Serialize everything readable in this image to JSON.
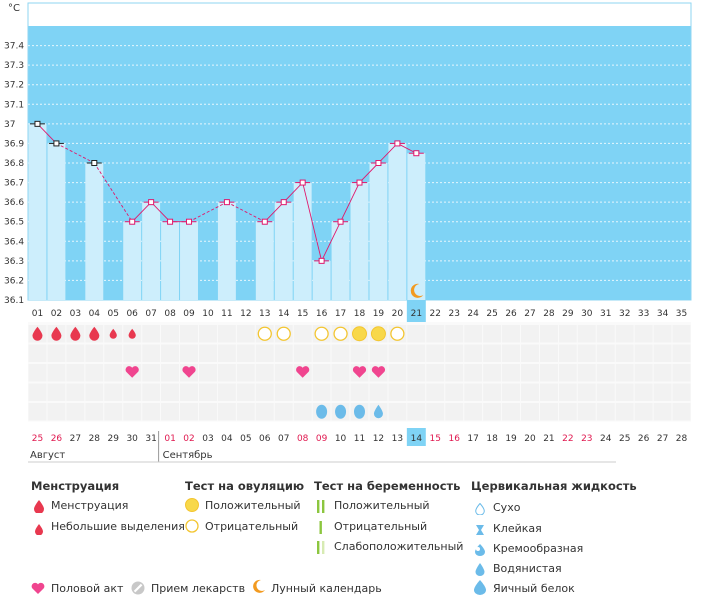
{
  "chart_data": {
    "type": "bar",
    "title": "",
    "unit": "°C",
    "ylim": [
      36.1,
      37.5
    ],
    "yticks": [
      "36.1",
      "36.2",
      "36.3",
      "36.4",
      "36.5",
      "36.6",
      "36.7",
      "36.8",
      "36.9",
      "37",
      "37.1",
      "37.2",
      "37.3",
      "37.4"
    ],
    "cycle_days": [
      "01",
      "02",
      "03",
      "04",
      "05",
      "06",
      "07",
      "08",
      "09",
      "10",
      "11",
      "12",
      "13",
      "14",
      "15",
      "16",
      "17",
      "18",
      "19",
      "20",
      "21",
      "22",
      "23",
      "24",
      "25",
      "26",
      "27",
      "28",
      "29",
      "30",
      "31",
      "32",
      "33",
      "34",
      "35"
    ],
    "temperatures": [
      37.0,
      36.9,
      null,
      36.8,
      null,
      36.5,
      36.6,
      36.5,
      36.5,
      null,
      36.6,
      null,
      36.5,
      36.6,
      36.7,
      36.3,
      36.5,
      36.7,
      36.8,
      36.9,
      36.85,
      null,
      null,
      null,
      null,
      null,
      null,
      null,
      null,
      null,
      null,
      null,
      null,
      null,
      null
    ],
    "current_cycle_day": "21",
    "moon_day": "21",
    "calendar_dates": [
      "25",
      "26",
      "27",
      "28",
      "29",
      "30",
      "31",
      "01",
      "02",
      "03",
      "04",
      "05",
      "06",
      "07",
      "08",
      "09",
      "10",
      "11",
      "12",
      "13",
      "14",
      "15",
      "16",
      "17",
      "18",
      "19",
      "20",
      "21",
      "22",
      "23",
      "24",
      "25",
      "26",
      "27",
      "28"
    ],
    "calendar_red": [
      true,
      true,
      false,
      false,
      false,
      false,
      false,
      true,
      true,
      false,
      false,
      false,
      false,
      false,
      true,
      true,
      false,
      false,
      false,
      false,
      false,
      true,
      true,
      false,
      false,
      false,
      false,
      false,
      true,
      true,
      false,
      false,
      false,
      false,
      false
    ],
    "current_date": "14",
    "months": [
      "Август",
      "Сентябрь"
    ],
    "menstruation": [
      "heavy",
      "heavy",
      "heavy",
      "heavy",
      "light",
      "light",
      null,
      null,
      null,
      null,
      null,
      null,
      null,
      null,
      null,
      null,
      null,
      null,
      null,
      null,
      null,
      null,
      null,
      null,
      null,
      null,
      null,
      null,
      null,
      null,
      null,
      null,
      null,
      null,
      null
    ],
    "ovulation_test": [
      null,
      null,
      null,
      null,
      null,
      null,
      null,
      null,
      null,
      null,
      null,
      null,
      "negative",
      "negative",
      null,
      "negative",
      "negative",
      "positive",
      "positive",
      "negative",
      null,
      null,
      null,
      null,
      null,
      null,
      null,
      null,
      null,
      null,
      null,
      null,
      null,
      null,
      null
    ],
    "intercourse": [
      null,
      null,
      null,
      null,
      null,
      "yes",
      null,
      null,
      "yes",
      null,
      null,
      null,
      null,
      null,
      "yes",
      null,
      null,
      "yes",
      "yes",
      null,
      null,
      null,
      null,
      null,
      null,
      null,
      null,
      null,
      null,
      null,
      null,
      null,
      null,
      null,
      null
    ],
    "cervical_fluid": [
      null,
      null,
      null,
      null,
      null,
      null,
      null,
      null,
      null,
      null,
      null,
      null,
      null,
      null,
      null,
      "egg_white",
      "egg_white",
      "egg_white",
      "watery",
      null,
      null,
      null,
      null,
      null,
      null,
      null,
      null,
      null,
      null,
      null,
      null,
      null,
      null,
      null,
      null
    ]
  },
  "colors": {
    "sky": "#7fd3f5",
    "bar": "#cdeefc",
    "line": "#e0186c",
    "menstruation": "#e8384f",
    "heart": "#f0458f",
    "ovulation_positive": "#f8d84a",
    "ovulation_negative": "#f3c530",
    "fluid": "#6bbbe9",
    "moon": "#f29a1f",
    "today": "#7fd3f5",
    "date_red": "#e0184f"
  },
  "legend": {
    "menstruation": {
      "title": "Менструация",
      "items": [
        "Менструация",
        "Небольшие выделения"
      ]
    },
    "ovulation": {
      "title": "Тест на овуляцию",
      "items": [
        "Положительный",
        "Отрицательный"
      ]
    },
    "pregnancy": {
      "title": "Тест на беременность",
      "items": [
        "Положительный",
        "Отрицательный",
        "Слабоположительный"
      ]
    },
    "fluid": {
      "title": "Цервикальная жидкость",
      "items": [
        "Сухо",
        "Клейкая",
        "Кремообразная",
        "Водянистая",
        "Яичный белок"
      ]
    },
    "bottom": [
      "Половой акт",
      "Прием лекарств",
      "Лунный календарь"
    ]
  }
}
